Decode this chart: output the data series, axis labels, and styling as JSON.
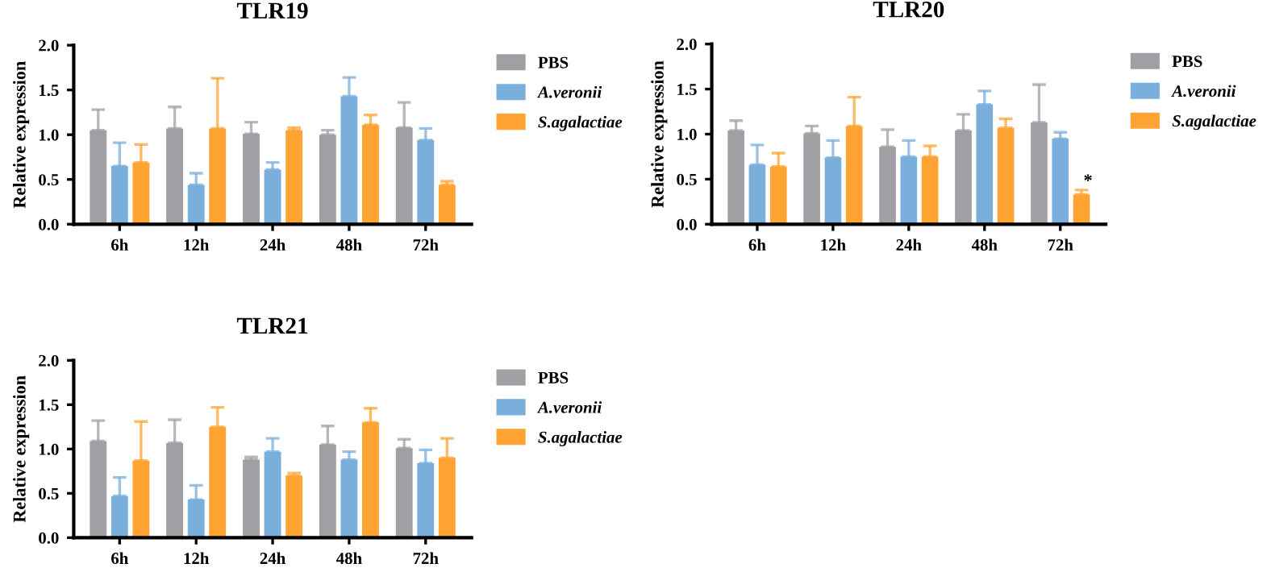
{
  "chart_data": [
    {
      "type": "bar",
      "title": "TLR19",
      "ylabel": "Relative expression",
      "categories": [
        "6h",
        "12h",
        "24h",
        "48h",
        "72h"
      ],
      "series": [
        {
          "name": "PBS",
          "color": "#a0a0a4",
          "values": [
            1.05,
            1.07,
            1.01,
            1.0,
            1.08
          ],
          "errors": [
            [
              1.05,
              1.28
            ],
            [
              1.07,
              1.31
            ],
            [
              1.01,
              1.14
            ],
            [
              1.0,
              1.05
            ],
            [
              1.08,
              1.36
            ]
          ]
        },
        {
          "name": "A.veronii",
          "color": "#7aaedb",
          "values": [
            0.65,
            0.44,
            0.61,
            1.43,
            0.94
          ],
          "errors": [
            [
              0.65,
              0.91
            ],
            [
              0.44,
              0.57
            ],
            [
              0.61,
              0.69
            ],
            [
              1.43,
              1.64
            ],
            [
              0.94,
              1.07
            ]
          ]
        },
        {
          "name": "S.agalactiae",
          "color": "#ffa332",
          "values": [
            0.69,
            1.07,
            1.05,
            1.11,
            0.44
          ],
          "errors": [
            [
              0.69,
              0.89
            ],
            [
              1.07,
              1.63
            ],
            [
              1.05,
              1.08
            ],
            [
              1.11,
              1.22
            ],
            [
              0.44,
              0.48
            ]
          ]
        }
      ],
      "ylim": [
        0,
        2.0
      ],
      "yticks": [
        {
          "value": 0,
          "label": "0.0"
        },
        {
          "value": 0.5,
          "label": "0.5"
        },
        {
          "value": 1.0,
          "label": "1.0"
        },
        {
          "value": 1.5,
          "label": "1.5"
        },
        {
          "value": 2.0,
          "label": "2.0"
        }
      ],
      "legend": "right",
      "grid": false
    },
    {
      "type": "bar",
      "title": "TLR20",
      "ylabel": "Relative expression",
      "categories": [
        "6h",
        "12h",
        "24h",
        "48h",
        "72h"
      ],
      "series": [
        {
          "name": "PBS",
          "color": "#a0a0a4",
          "values": [
            1.04,
            1.01,
            0.86,
            1.04,
            1.13
          ],
          "errors": [
            [
              1.04,
              1.15
            ],
            [
              1.01,
              1.09
            ],
            [
              0.86,
              1.05
            ],
            [
              1.04,
              1.22
            ],
            [
              1.13,
              1.55
            ]
          ]
        },
        {
          "name": "A.veronii",
          "color": "#7aaedb",
          "values": [
            0.66,
            0.74,
            0.75,
            1.33,
            0.95
          ],
          "errors": [
            [
              0.66,
              0.88
            ],
            [
              0.74,
              0.93
            ],
            [
              0.75,
              0.93
            ],
            [
              1.33,
              1.48
            ],
            [
              0.95,
              1.02
            ]
          ]
        },
        {
          "name": "S.agalactiae",
          "color": "#ffa332",
          "values": [
            0.64,
            1.09,
            0.75,
            1.07,
            0.33
          ],
          "errors": [
            [
              0.64,
              0.79
            ],
            [
              1.09,
              1.41
            ],
            [
              0.75,
              0.87
            ],
            [
              1.07,
              1.17
            ],
            [
              0.33,
              0.38
            ]
          ]
        }
      ],
      "ylim": [
        0,
        2.0
      ],
      "yticks": [
        {
          "value": 0,
          "label": "0.0"
        },
        {
          "value": 0.5,
          "label": "0.5"
        },
        {
          "value": 1.0,
          "label": "1.0"
        },
        {
          "value": 1.5,
          "label": "1.5"
        },
        {
          "value": 2.0,
          "label": "2.0"
        }
      ],
      "annotations": [
        "*"
      ],
      "legend": "right",
      "grid": false
    },
    {
      "type": "bar",
      "title": "TLR21",
      "ylabel": "Relative expression",
      "categories": [
        "6h",
        "12h",
        "24h",
        "48h",
        "72h"
      ],
      "series": [
        {
          "name": "PBS",
          "color": "#a0a0a4",
          "values": [
            1.09,
            1.07,
            0.88,
            1.05,
            1.01
          ],
          "errors": [
            [
              1.09,
              1.32
            ],
            [
              1.07,
              1.33
            ],
            [
              0.88,
              0.91
            ],
            [
              1.05,
              1.26
            ],
            [
              1.01,
              1.11
            ]
          ]
        },
        {
          "name": "A.veronii",
          "color": "#7aaedb",
          "values": [
            0.47,
            0.43,
            0.97,
            0.88,
            0.84
          ],
          "errors": [
            [
              0.47,
              0.68
            ],
            [
              0.43,
              0.59
            ],
            [
              0.97,
              1.12
            ],
            [
              0.88,
              0.97
            ],
            [
              0.84,
              0.99
            ]
          ]
        },
        {
          "name": "S.agalactiae",
          "color": "#ffa332",
          "values": [
            0.87,
            1.25,
            0.7,
            1.3,
            0.9
          ],
          "errors": [
            [
              0.87,
              1.31
            ],
            [
              1.25,
              1.47
            ],
            [
              0.7,
              0.73
            ],
            [
              1.3,
              1.46
            ],
            [
              0.9,
              1.12
            ]
          ]
        }
      ],
      "ylim": [
        0,
        2.0
      ],
      "yticks": [
        {
          "value": 0,
          "label": "0.0"
        },
        {
          "value": 0.5,
          "label": "0.5"
        },
        {
          "value": 1.0,
          "label": "1.0"
        },
        {
          "value": 1.5,
          "label": "1.5"
        },
        {
          "value": 2.0,
          "label": "2.0"
        }
      ],
      "legend": "right",
      "grid": false
    }
  ]
}
